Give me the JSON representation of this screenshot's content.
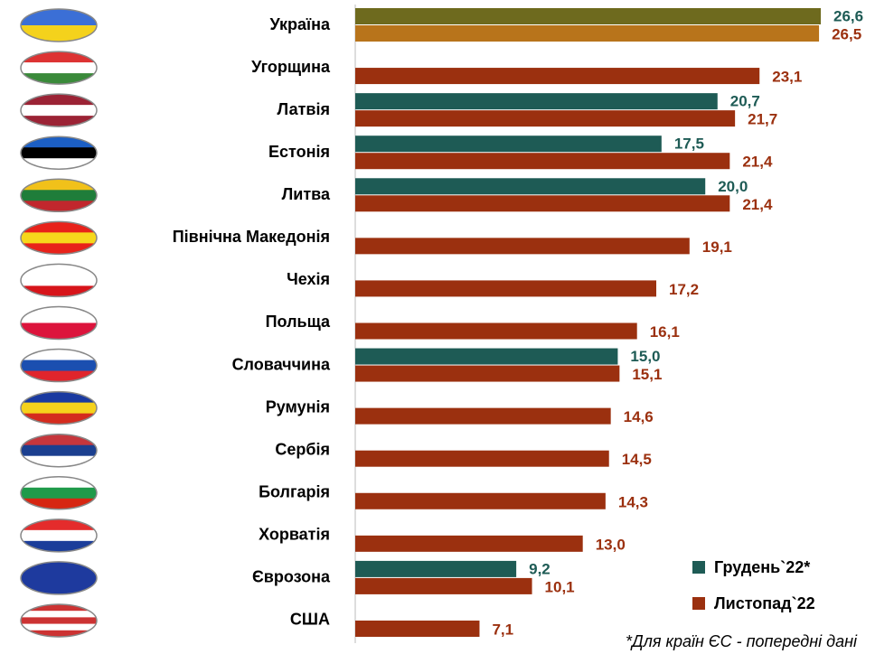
{
  "chart_data": {
    "type": "bar",
    "orientation": "horizontal",
    "categories": [
      "Україна",
      "Угорщина",
      "Латвія",
      "Естонія",
      "Литва",
      "Північна Македонія",
      "Чехія",
      "Польща",
      "Словаччина",
      "Румунія",
      "Сербія",
      "Болгарія",
      "Хорватія",
      "Єврозона",
      "США"
    ],
    "series": [
      {
        "name": "Грудень`22*",
        "color": "#1e5b55",
        "colors": [
          "#6e6a1e",
          null,
          "#1e5b55",
          "#1e5b55",
          "#1e5b55",
          null,
          null,
          null,
          "#1e5b55",
          null,
          null,
          null,
          null,
          "#1e5b55",
          null
        ],
        "values": [
          26.6,
          null,
          20.7,
          17.5,
          20.0,
          null,
          null,
          null,
          15.0,
          null,
          null,
          null,
          null,
          9.2,
          null
        ],
        "value_labels": [
          "26,6",
          null,
          "20,7",
          "17,5",
          "20,0",
          null,
          null,
          null,
          "15,0",
          null,
          null,
          null,
          null,
          "9,2",
          null
        ]
      },
      {
        "name": "Листопад`22",
        "color": "#9b300f",
        "colors": [
          "#b8741b",
          "#9b300f",
          "#9b300f",
          "#9b300f",
          "#9b300f",
          "#9b300f",
          "#9b300f",
          "#9b300f",
          "#9b300f",
          "#9b300f",
          "#9b300f",
          "#9b300f",
          "#9b300f",
          "#9b300f",
          "#9b300f"
        ],
        "values": [
          26.5,
          23.1,
          21.7,
          21.4,
          21.4,
          19.1,
          17.2,
          16.1,
          15.1,
          14.6,
          14.5,
          14.3,
          13.0,
          10.1,
          7.1
        ],
        "value_labels": [
          "26,5",
          "23,1",
          "21,7",
          "21,4",
          "21,4",
          "19,1",
          "17,2",
          "16,1",
          "15,1",
          "14,6",
          "14,5",
          "14,3",
          "13,0",
          "10,1",
          "7,1"
        ]
      }
    ],
    "footnote": "*Для країн ЄС - попередні дані"
  }
}
